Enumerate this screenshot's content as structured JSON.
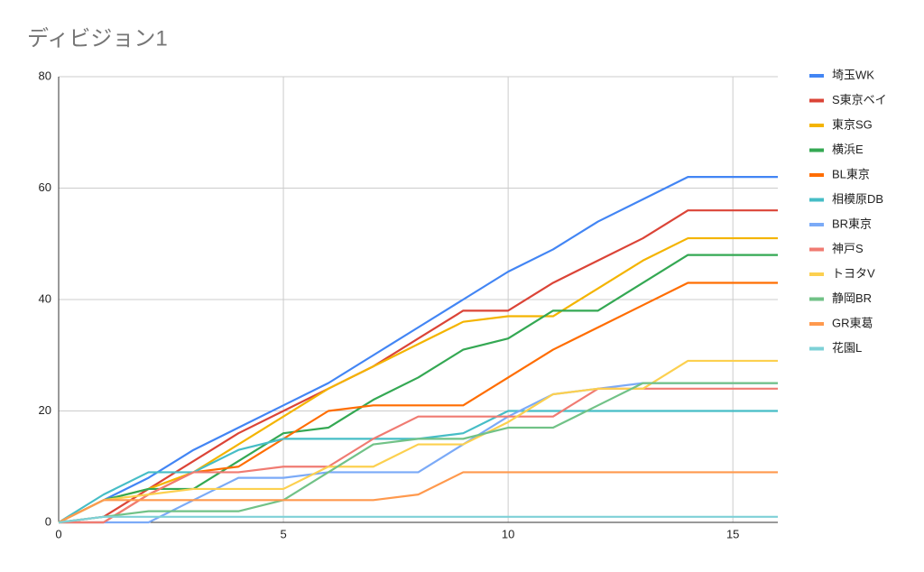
{
  "chart_data": {
    "type": "line",
    "title": "ディビジョン1",
    "x": [
      0,
      1,
      2,
      3,
      4,
      5,
      6,
      7,
      8,
      9,
      10,
      11,
      12,
      13,
      14,
      15,
      16
    ],
    "xlim": [
      0,
      16
    ],
    "xticks": [
      0,
      5,
      10,
      15
    ],
    "ylim": [
      0,
      80
    ],
    "yticks": [
      0,
      20,
      40,
      60,
      80
    ],
    "grid": true,
    "legend": "right",
    "series": [
      {
        "name": "埼玉WK",
        "color": "#4285f4",
        "values": [
          0,
          4,
          8,
          13,
          17,
          21,
          25,
          30,
          35,
          40,
          45,
          49,
          54,
          58,
          62,
          62,
          62
        ]
      },
      {
        "name": "S東京ベイ",
        "color": "#db4437",
        "values": [
          0,
          1,
          6,
          11,
          16,
          20,
          24,
          28,
          33,
          38,
          38,
          43,
          47,
          51,
          56,
          56,
          56
        ]
      },
      {
        "name": "東京SG",
        "color": "#f4b400",
        "values": [
          0,
          4,
          6,
          9,
          14,
          19,
          24,
          28,
          32,
          36,
          37,
          37,
          42,
          47,
          51,
          51,
          51
        ]
      },
      {
        "name": "横浜E",
        "color": "#34a853",
        "values": [
          0,
          4,
          6,
          6,
          11,
          16,
          17,
          22,
          26,
          31,
          33,
          38,
          38,
          43,
          48,
          48,
          48
        ]
      },
      {
        "name": "BL東京",
        "color": "#ff6d01",
        "values": [
          0,
          0,
          5,
          9,
          10,
          15,
          20,
          21,
          21,
          21,
          26,
          31,
          35,
          39,
          43,
          43,
          43
        ]
      },
      {
        "name": "相模原DB",
        "color": "#46bdc6",
        "values": [
          0,
          5,
          9,
          9,
          13,
          15,
          15,
          15,
          15,
          16,
          20,
          20,
          20,
          20,
          20,
          20,
          20
        ]
      },
      {
        "name": "BR東京",
        "color": "#7baaf7",
        "values": [
          0,
          0,
          0,
          4,
          8,
          8,
          9,
          9,
          9,
          14,
          19,
          23,
          24,
          25,
          25,
          25,
          25
        ]
      },
      {
        "name": "神戸S",
        "color": "#f07b72",
        "values": [
          0,
          0,
          5,
          9,
          9,
          10,
          10,
          15,
          19,
          19,
          19,
          19,
          24,
          24,
          24,
          24,
          24
        ]
      },
      {
        "name": "トヨタV",
        "color": "#fcd04f",
        "values": [
          0,
          4,
          5,
          6,
          6,
          6,
          10,
          10,
          14,
          14,
          18,
          23,
          24,
          24,
          29,
          29,
          29
        ]
      },
      {
        "name": "静岡BR",
        "color": "#71c287",
        "values": [
          0,
          1,
          2,
          2,
          2,
          4,
          9,
          14,
          15,
          15,
          17,
          17,
          21,
          25,
          25,
          25,
          25
        ]
      },
      {
        "name": "GR東葛",
        "color": "#ff994d",
        "values": [
          0,
          4,
          4,
          4,
          4,
          4,
          4,
          4,
          5,
          9,
          9,
          9,
          9,
          9,
          9,
          9,
          9
        ]
      },
      {
        "name": "花園L",
        "color": "#7ed1d7",
        "values": [
          0,
          1,
          1,
          1,
          1,
          1,
          1,
          1,
          1,
          1,
          1,
          1,
          1,
          1,
          1,
          1,
          1
        ]
      }
    ]
  }
}
